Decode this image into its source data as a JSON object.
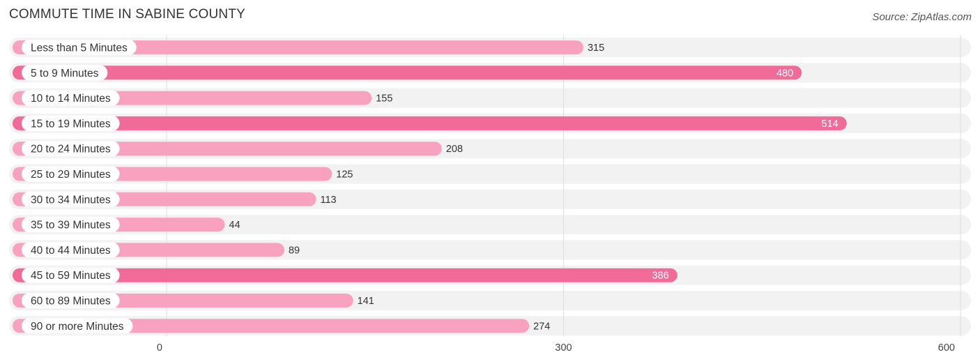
{
  "title": "COMMUTE TIME IN SABINE COUNTY",
  "source": "Source: ZipAtlas.com",
  "colors": {
    "bar_strong": "#f06b97",
    "bar_light": "#f8a2bf",
    "row_bg": "#f2f2f2",
    "grid": "#dddddd"
  },
  "chart_data": {
    "type": "bar",
    "orientation": "horizontal",
    "title": "COMMUTE TIME IN SABINE COUNTY",
    "categories": [
      "Less than 5 Minutes",
      "5 to 9 Minutes",
      "10 to 14 Minutes",
      "15 to 19 Minutes",
      "20 to 24 Minutes",
      "25 to 29 Minutes",
      "30 to 34 Minutes",
      "35 to 39 Minutes",
      "40 to 44 Minutes",
      "45 to 59 Minutes",
      "60 to 89 Minutes",
      "90 or more Minutes"
    ],
    "values": [
      315,
      480,
      155,
      514,
      208,
      125,
      113,
      44,
      89,
      386,
      141,
      274
    ],
    "xlim": [
      0,
      600
    ],
    "xticks": [
      0,
      300,
      600
    ],
    "grid": true,
    "legend": "none"
  }
}
